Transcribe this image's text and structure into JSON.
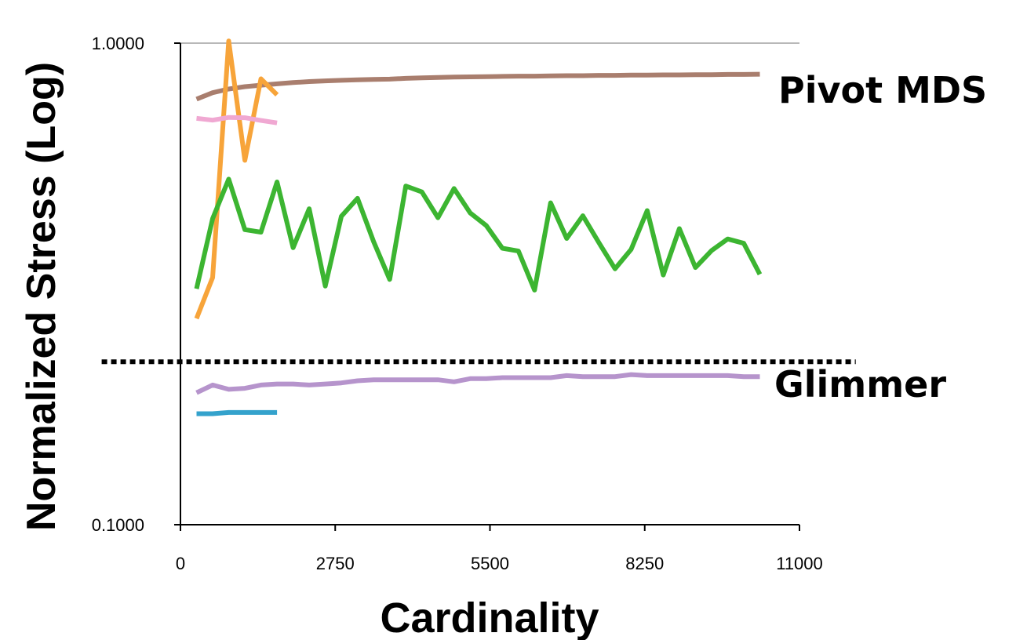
{
  "chart_data": {
    "type": "line",
    "title": "",
    "xlabel": "Cardinality",
    "ylabel": "Normalized Stress (Log)",
    "x_ticks": [
      0,
      2750,
      5500,
      8250,
      11000
    ],
    "x_tick_labels": [
      "0",
      "2750",
      "5500",
      "8250",
      "11000"
    ],
    "y_ticks": [
      0.1,
      1.0
    ],
    "y_tick_labels": [
      "0.1000",
      "1.0000"
    ],
    "xlim": [
      0,
      11000
    ],
    "ylim": [
      0.1,
      1.0
    ],
    "y_scale": "log",
    "grid": "horizontal at 1.0000",
    "legend": "none",
    "annotations": [
      {
        "text": "Pivot MDS"
      },
      {
        "text": "Glimmer"
      }
    ],
    "threshold_line": {
      "y": 0.218,
      "x_range": [
        -1400,
        12000
      ],
      "style": "dotted",
      "color": "#000000"
    },
    "series": [
      {
        "color": "#a97e6e",
        "x": [
          286,
          572,
          858,
          1144,
          1430,
          1716,
          2002,
          2288,
          2574,
          2860,
          3146,
          3432,
          3718,
          4004,
          4290,
          4576,
          4862,
          5148,
          5434,
          5720,
          6006,
          6292,
          6578,
          6864,
          7150,
          7436,
          7722,
          8008,
          8294,
          8580,
          8866,
          9152,
          9438,
          9724,
          10010,
          10296
        ],
        "y": [
          0.765,
          0.789,
          0.803,
          0.812,
          0.818,
          0.823,
          0.828,
          0.832,
          0.835,
          0.837,
          0.839,
          0.841,
          0.842,
          0.845,
          0.847,
          0.849,
          0.85,
          0.851,
          0.852,
          0.853,
          0.854,
          0.854,
          0.855,
          0.856,
          0.856,
          0.857,
          0.857,
          0.858,
          0.858,
          0.859,
          0.859,
          0.86,
          0.86,
          0.861,
          0.861,
          0.862
        ]
      },
      {
        "color": "#f7a43a",
        "x": [
          286,
          572,
          858,
          1144,
          1430,
          1716
        ],
        "y": [
          0.268,
          0.326,
          1.01,
          0.571,
          0.843,
          0.781
        ]
      },
      {
        "color": "#f0a8d2",
        "x": [
          286,
          572,
          858,
          1144,
          1430,
          1716
        ],
        "y": [
          0.698,
          0.692,
          0.701,
          0.7,
          0.691,
          0.683
        ]
      },
      {
        "color": "#3cb531",
        "x": [
          286,
          572,
          858,
          1144,
          1430,
          1716,
          2002,
          2288,
          2574,
          2860,
          3146,
          3432,
          3718,
          4004,
          4290,
          4576,
          4862,
          5148,
          5434,
          5720,
          6006,
          6292,
          6578,
          6864,
          7150,
          7436,
          7722,
          8008,
          8294,
          8580,
          8866,
          9152,
          9438,
          9724,
          10010,
          10296
        ],
        "y": [
          0.309,
          0.432,
          0.522,
          0.41,
          0.405,
          0.515,
          0.376,
          0.453,
          0.313,
          0.437,
          0.476,
          0.387,
          0.323,
          0.505,
          0.491,
          0.434,
          0.499,
          0.444,
          0.418,
          0.375,
          0.37,
          0.307,
          0.466,
          0.393,
          0.438,
          0.385,
          0.34,
          0.373,
          0.449,
          0.33,
          0.412,
          0.342,
          0.371,
          0.392,
          0.384,
          0.331
        ]
      },
      {
        "color": "#b694cc",
        "x": [
          286,
          572,
          858,
          1144,
          1430,
          1716,
          2002,
          2288,
          2574,
          2860,
          3146,
          3432,
          3718,
          4004,
          4290,
          4576,
          4862,
          5148,
          5434,
          5720,
          6006,
          6292,
          6578,
          6864,
          7150,
          7436,
          7722,
          8008,
          8294,
          8580,
          8866,
          9152,
          9438,
          9724,
          10010,
          10296
        ],
        "y": [
          0.188,
          0.195,
          0.191,
          0.192,
          0.195,
          0.196,
          0.196,
          0.195,
          0.196,
          0.197,
          0.199,
          0.2,
          0.2,
          0.2,
          0.2,
          0.2,
          0.198,
          0.201,
          0.201,
          0.202,
          0.202,
          0.202,
          0.202,
          0.204,
          0.203,
          0.203,
          0.203,
          0.205,
          0.204,
          0.204,
          0.204,
          0.204,
          0.204,
          0.204,
          0.203,
          0.203
        ]
      },
      {
        "color": "#34a2cc",
        "x": [
          286,
          572,
          858,
          1144,
          1430,
          1716
        ],
        "y": [
          0.17,
          0.17,
          0.171,
          0.171,
          0.171,
          0.171
        ]
      }
    ]
  }
}
